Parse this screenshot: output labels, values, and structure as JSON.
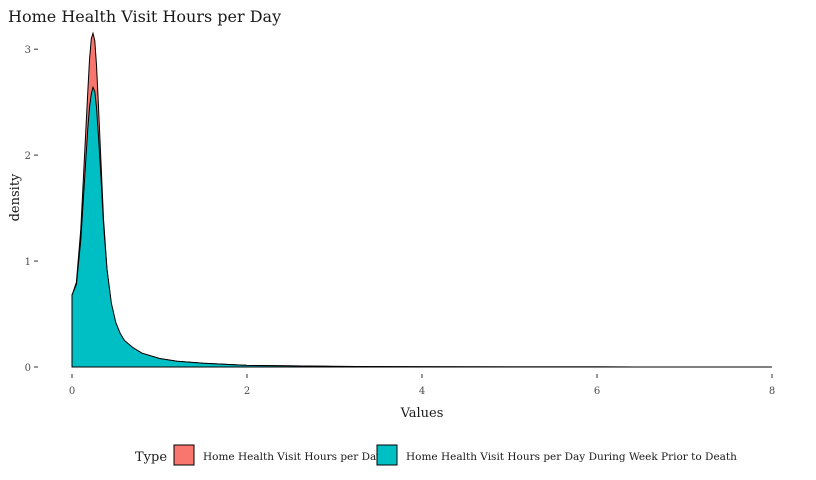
{
  "chart_data": {
    "type": "area",
    "title": "Home Health Visit Hours per Day",
    "xlabel": "Values",
    "ylabel": "density",
    "xlim": [
      0,
      8
    ],
    "ylim": [
      0,
      3.2
    ],
    "x_ticks": [
      0,
      2,
      4,
      6,
      8
    ],
    "y_ticks": [
      0,
      1,
      2,
      3
    ],
    "grid": false,
    "legend": {
      "title": "Type",
      "position": "bottom"
    },
    "series": [
      {
        "name": "Home Health Visit Hours per Day",
        "color": "#F8766D",
        "x": [
          0,
          0.01,
          0.05,
          0.1,
          0.15,
          0.18,
          0.2,
          0.22,
          0.24,
          0.26,
          0.28,
          0.3,
          0.33,
          0.36,
          0.4,
          0.45,
          0.5,
          0.55,
          0.6,
          0.7,
          0.8,
          1.0,
          1.2,
          1.5,
          2.0,
          2.5,
          3.0,
          3.5,
          4.0,
          5.0,
          6.0,
          7.0,
          8.0
        ],
        "y": [
          0.68,
          0.7,
          0.8,
          1.3,
          2.1,
          2.6,
          2.9,
          3.1,
          3.15,
          3.08,
          2.85,
          2.5,
          1.95,
          1.4,
          0.92,
          0.58,
          0.4,
          0.3,
          0.24,
          0.18,
          0.13,
          0.08,
          0.055,
          0.035,
          0.015,
          0.01,
          0.006,
          0.004,
          0.002,
          0.001,
          0.0005,
          0.0002,
          0.0001
        ]
      },
      {
        "name": "Home Health Visit Hours per Day During Week Prior to Death",
        "color": "#00BFC4",
        "x": [
          0,
          0.01,
          0.05,
          0.1,
          0.15,
          0.18,
          0.2,
          0.22,
          0.24,
          0.26,
          0.28,
          0.3,
          0.33,
          0.36,
          0.4,
          0.45,
          0.5,
          0.55,
          0.6,
          0.7,
          0.8,
          1.0,
          1.2,
          1.5,
          2.0,
          2.5,
          3.0,
          3.5,
          4.0,
          5.0,
          6.0,
          7.0,
          8.0
        ],
        "y": [
          0.68,
          0.7,
          0.78,
          1.2,
          1.85,
          2.25,
          2.45,
          2.58,
          2.64,
          2.6,
          2.45,
          2.2,
          1.8,
          1.35,
          0.92,
          0.6,
          0.42,
          0.32,
          0.25,
          0.18,
          0.13,
          0.08,
          0.055,
          0.035,
          0.015,
          0.01,
          0.006,
          0.004,
          0.002,
          0.001,
          0.0005,
          0.0002,
          0.0001
        ]
      }
    ]
  }
}
